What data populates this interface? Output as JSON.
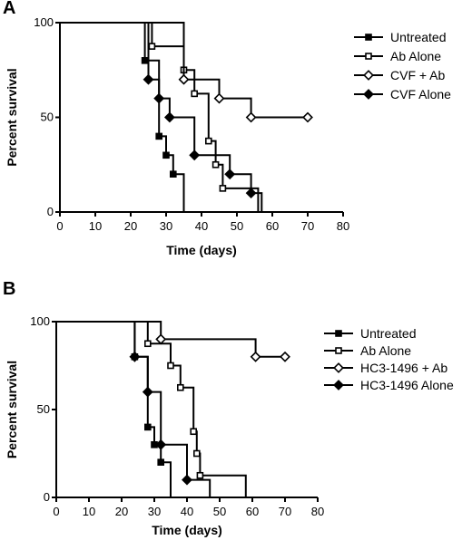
{
  "chart_data": [
    {
      "type": "line",
      "panel_label": "A",
      "xlabel": "Time (days)",
      "ylabel": "Percent survival",
      "xlim": [
        0,
        80
      ],
      "ylim": [
        0,
        100
      ],
      "x_ticks": [
        0,
        10,
        20,
        30,
        40,
        50,
        60,
        70,
        80
      ],
      "y_ticks": [
        0,
        50,
        100
      ],
      "legend_position": "right",
      "series": [
        {
          "name": "Untreated",
          "marker": "filled-square",
          "points": [
            [
              0,
              100
            ],
            [
              24,
              100
            ],
            [
              24,
              80
            ],
            [
              28,
              80
            ],
            [
              28,
              40
            ],
            [
              30,
              40
            ],
            [
              30,
              30
            ],
            [
              32,
              30
            ],
            [
              32,
              20
            ],
            [
              35,
              20
            ],
            [
              35,
              0
            ]
          ]
        },
        {
          "name": "Ab Alone",
          "marker": "open-square",
          "points": [
            [
              0,
              100
            ],
            [
              26,
              100
            ],
            [
              26,
              87.5
            ],
            [
              35,
              87.5
            ],
            [
              35,
              75
            ],
            [
              38,
              75
            ],
            [
              38,
              62.5
            ],
            [
              42,
              62.5
            ],
            [
              42,
              37.5
            ],
            [
              44,
              37.5
            ],
            [
              44,
              25
            ],
            [
              46,
              25
            ],
            [
              46,
              12.5
            ],
            [
              56,
              12.5
            ],
            [
              56,
              0
            ],
            [
              58,
              0
            ]
          ]
        },
        {
          "name": "CVF + Ab",
          "marker": "open-diamond",
          "points": [
            [
              0,
              100
            ],
            [
              35,
              100
            ],
            [
              35,
              70
            ],
            [
              45,
              70
            ],
            [
              45,
              60
            ],
            [
              54,
              60
            ],
            [
              54,
              50
            ],
            [
              70,
              50
            ]
          ]
        },
        {
          "name": "CVF Alone",
          "marker": "filled-diamond",
          "points": [
            [
              0,
              100
            ],
            [
              25,
              100
            ],
            [
              25,
              70
            ],
            [
              28,
              70
            ],
            [
              28,
              60
            ],
            [
              31,
              60
            ],
            [
              31,
              50
            ],
            [
              38,
              50
            ],
            [
              38,
              30
            ],
            [
              48,
              30
            ],
            [
              48,
              20
            ],
            [
              54,
              20
            ],
            [
              54,
              10
            ],
            [
              57,
              10
            ],
            [
              57,
              0
            ]
          ]
        }
      ]
    },
    {
      "type": "line",
      "panel_label": "B",
      "xlabel": "Time (days)",
      "ylabel": "Percent survival",
      "xlim": [
        0,
        80
      ],
      "ylim": [
        0,
        100
      ],
      "x_ticks": [
        0,
        10,
        20,
        30,
        40,
        50,
        60,
        70,
        80
      ],
      "y_ticks": [
        0,
        50,
        100
      ],
      "legend_position": "right",
      "series": [
        {
          "name": "Untreated",
          "marker": "filled-square",
          "points": [
            [
              0,
              100
            ],
            [
              24,
              100
            ],
            [
              24,
              80
            ],
            [
              28,
              80
            ],
            [
              28,
              40
            ],
            [
              30,
              40
            ],
            [
              30,
              30
            ],
            [
              32,
              30
            ],
            [
              32,
              20
            ],
            [
              35,
              20
            ],
            [
              35,
              0
            ]
          ]
        },
        {
          "name": "Ab Alone",
          "marker": "open-square",
          "points": [
            [
              0,
              100
            ],
            [
              28,
              100
            ],
            [
              28,
              87.5
            ],
            [
              35,
              87.5
            ],
            [
              35,
              75
            ],
            [
              38,
              75
            ],
            [
              38,
              62.5
            ],
            [
              42,
              62.5
            ],
            [
              42,
              37.5
            ],
            [
              43,
              37.5
            ],
            [
              43,
              25
            ],
            [
              44,
              25
            ],
            [
              44,
              12.5
            ],
            [
              58,
              12.5
            ],
            [
              58,
              0
            ]
          ]
        },
        {
          "name": "HC3-1496 + Ab",
          "marker": "open-diamond",
          "points": [
            [
              0,
              100
            ],
            [
              32,
              100
            ],
            [
              32,
              90
            ],
            [
              61,
              90
            ],
            [
              61,
              80
            ],
            [
              70,
              80
            ]
          ]
        },
        {
          "name": "HC3-1496 Alone",
          "marker": "filled-diamond",
          "points": [
            [
              0,
              100
            ],
            [
              24,
              100
            ],
            [
              24,
              80
            ],
            [
              28,
              80
            ],
            [
              28,
              60
            ],
            [
              32,
              60
            ],
            [
              32,
              30
            ],
            [
              40,
              30
            ],
            [
              40,
              10
            ],
            [
              47,
              10
            ],
            [
              47,
              0
            ]
          ]
        }
      ]
    }
  ]
}
